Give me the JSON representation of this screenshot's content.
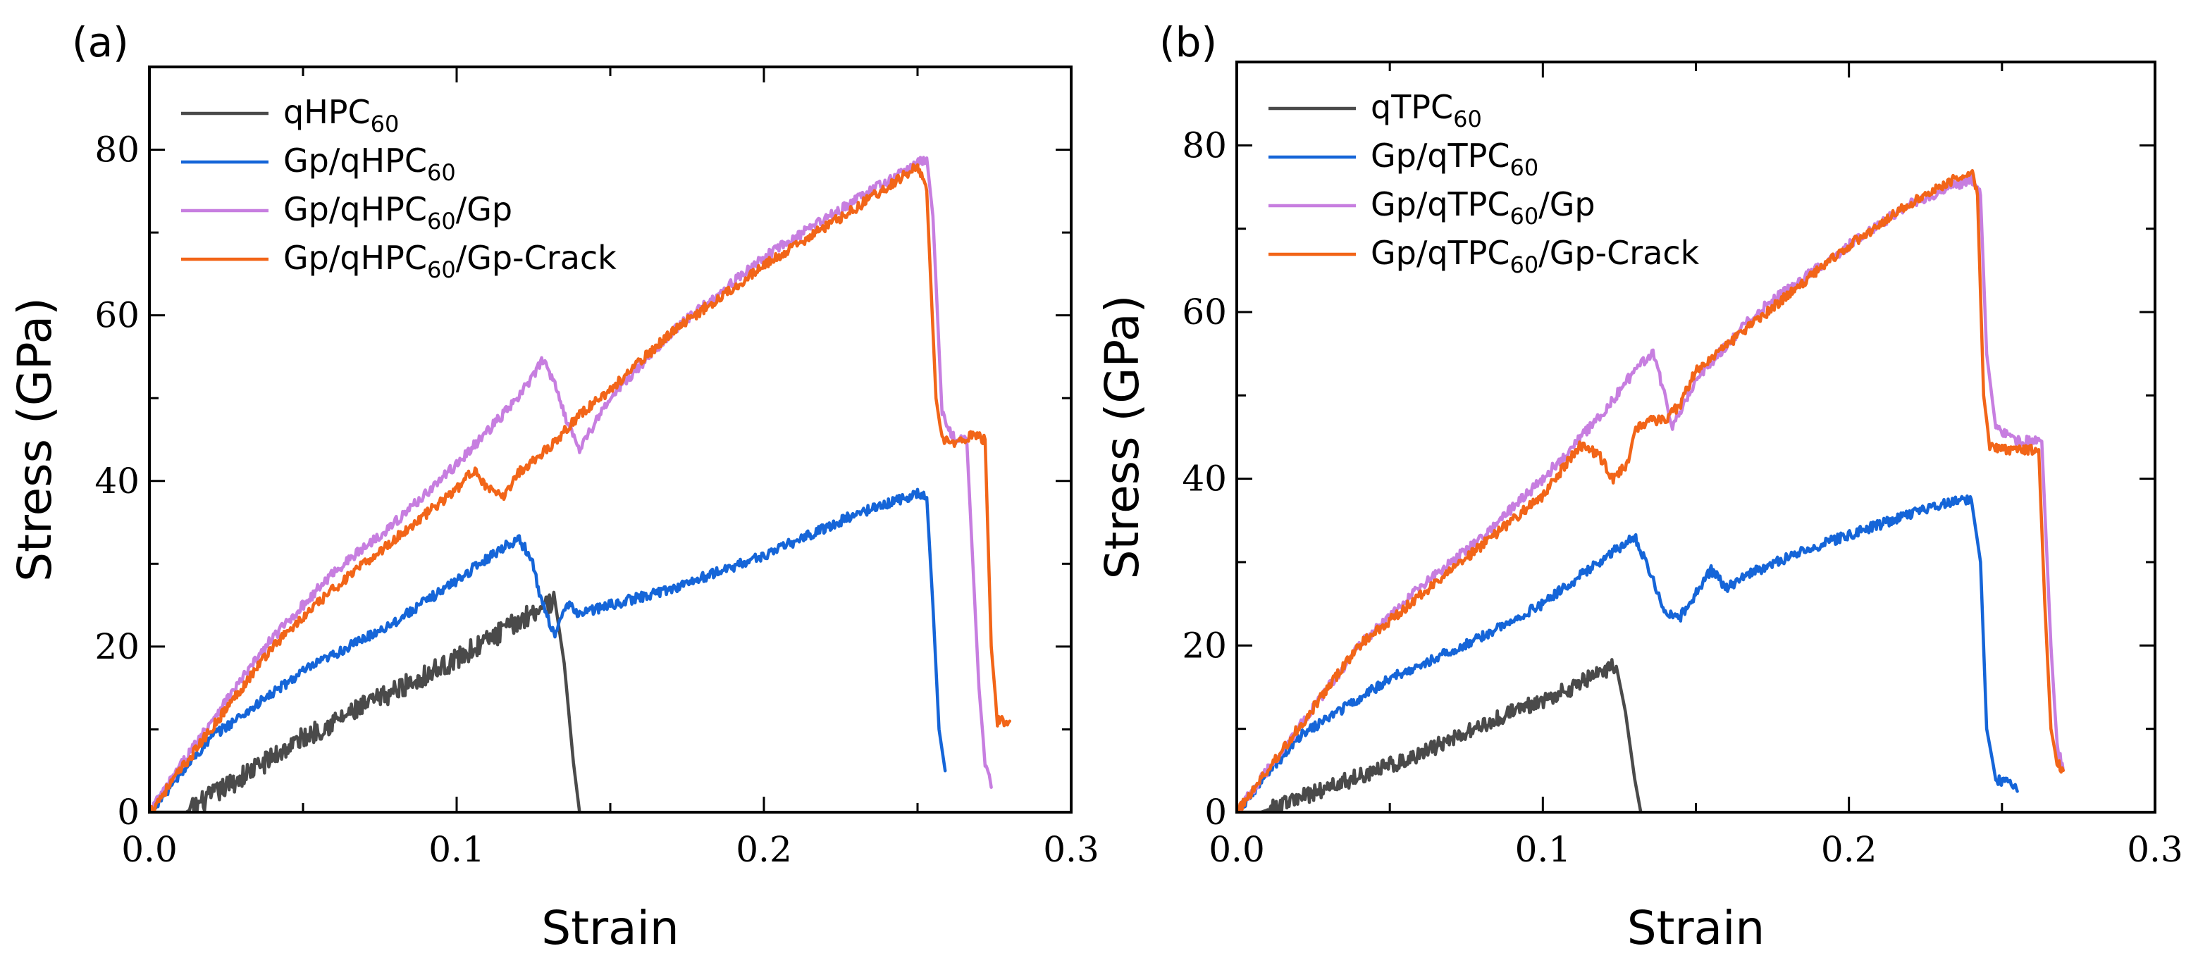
{
  "chart_data": [
    {
      "type": "line",
      "panel_label": "(a)",
      "xlabel": "Strain",
      "ylabel": "Stress (GPa)",
      "xlim": [
        0,
        0.3
      ],
      "ylim": [
        0,
        90
      ],
      "xticks": [
        0.0,
        0.1,
        0.2,
        0.3
      ],
      "xtick_labels": [
        "0.0",
        "0.1",
        "0.2",
        "0.3"
      ],
      "yticks": [
        0,
        20,
        40,
        60,
        80
      ],
      "ytick_labels": [
        "0",
        "20",
        "40",
        "60",
        "80"
      ],
      "legend_position": "top-left",
      "series": [
        {
          "name": "qHPC60",
          "legend": {
            "pre": "qHPC",
            "sub": "60",
            "post": ""
          },
          "color": "#4a4a4a",
          "noise": 1.3,
          "x": [
            0,
            0.012,
            0.05,
            0.1,
            0.12,
            0.128,
            0.132,
            0.135,
            0.138,
            0.14
          ],
          "y": [
            0,
            0,
            9,
            18.5,
            23,
            25,
            25.5,
            18,
            6,
            0
          ]
        },
        {
          "name": "Gp/qHPC60",
          "legend": {
            "pre": "Gp/qHPC",
            "sub": "60",
            "post": ""
          },
          "color": "#1565d8",
          "noise": 0.6,
          "x": [
            0,
            0.02,
            0.05,
            0.08,
            0.1,
            0.115,
            0.12,
            0.124,
            0.128,
            0.132,
            0.136,
            0.14,
            0.15,
            0.17,
            0.2,
            0.23,
            0.25,
            0.253,
            0.255,
            0.257,
            0.259
          ],
          "y": [
            0,
            9,
            17,
            23,
            28,
            32,
            33,
            31,
            25,
            21.5,
            25,
            24,
            25,
            27,
            31,
            36,
            38.5,
            38,
            25,
            10,
            5
          ]
        },
        {
          "name": "Gp/qHPC60/Gp",
          "legend": {
            "pre": "Gp/qHPC",
            "sub": "60",
            "post": "/Gp"
          },
          "color": "#c77ee0",
          "noise": 0.6,
          "x": [
            0,
            0.02,
            0.04,
            0.06,
            0.08,
            0.1,
            0.12,
            0.128,
            0.132,
            0.136,
            0.14,
            0.15,
            0.17,
            0.2,
            0.23,
            0.253,
            0.255,
            0.258,
            0.262,
            0.266,
            0.268,
            0.27,
            0.272,
            0.274
          ],
          "y": [
            0,
            11,
            21,
            29,
            35,
            42,
            50,
            54.5,
            52,
            47,
            44,
            50,
            58,
            67,
            74,
            79,
            72,
            48,
            45,
            45,
            30,
            15,
            6,
            3
          ]
        },
        {
          "name": "Gp/qHPC60/Gp-Crack",
          "legend": {
            "pre": "Gp/qHPC",
            "sub": "60",
            "post": "/Gp-Crack"
          },
          "color": "#f26518",
          "noise": 0.6,
          "x": [
            0,
            0.02,
            0.04,
            0.06,
            0.08,
            0.1,
            0.106,
            0.11,
            0.115,
            0.12,
            0.13,
            0.14,
            0.15,
            0.17,
            0.2,
            0.23,
            0.25,
            0.253,
            0.256,
            0.258,
            0.262,
            0.268,
            0.272,
            0.274,
            0.276,
            0.28
          ],
          "y": [
            0,
            10,
            20,
            27,
            33,
            39,
            41.5,
            39,
            38,
            41,
            44,
            48,
            51,
            58,
            66,
            73,
            78,
            75,
            50,
            45,
            44.5,
            45.5,
            45,
            20,
            11,
            11
          ]
        }
      ]
    },
    {
      "type": "line",
      "panel_label": "(b)",
      "xlabel": "Strain",
      "ylabel": "Stress (GPa)",
      "xlim": [
        0,
        0.3
      ],
      "ylim": [
        0,
        90
      ],
      "xticks": [
        0.0,
        0.1,
        0.2,
        0.3
      ],
      "xtick_labels": [
        "0.0",
        "0.1",
        "0.2",
        "0.3"
      ],
      "yticks": [
        0,
        20,
        40,
        60,
        80
      ],
      "ytick_labels": [
        "0",
        "20",
        "40",
        "60",
        "80"
      ],
      "legend_position": "top-left",
      "series": [
        {
          "name": "qTPC60",
          "legend": {
            "pre": "qTPC",
            "sub": "60",
            "post": ""
          },
          "color": "#4a4a4a",
          "noise": 1.0,
          "x": [
            0,
            0.008,
            0.03,
            0.06,
            0.09,
            0.11,
            0.12,
            0.124,
            0.127,
            0.13,
            0.132
          ],
          "y": [
            0,
            0,
            3,
            7,
            12,
            15,
            17,
            17.5,
            12,
            4,
            0
          ]
        },
        {
          "name": "Gp/qTPC60",
          "legend": {
            "pre": "Gp/qTPC",
            "sub": "60",
            "post": ""
          },
          "color": "#1565d8",
          "noise": 0.6,
          "x": [
            0,
            0.02,
            0.05,
            0.08,
            0.1,
            0.12,
            0.13,
            0.135,
            0.14,
            0.145,
            0.155,
            0.16,
            0.17,
            0.19,
            0.21,
            0.23,
            0.24,
            0.243,
            0.245,
            0.248,
            0.252,
            0.255
          ],
          "y": [
            0,
            9,
            16,
            21,
            25,
            30.5,
            33,
            29,
            24,
            23.5,
            29,
            27,
            29,
            32,
            34.5,
            37,
            37.5,
            30,
            10,
            4,
            3.5,
            2.5
          ]
        },
        {
          "name": "Gp/qTPC60/Gp",
          "legend": {
            "pre": "Gp/qTPC",
            "sub": "60",
            "post": "/Gp"
          },
          "color": "#c77ee0",
          "noise": 0.6,
          "x": [
            0,
            0.02,
            0.04,
            0.06,
            0.08,
            0.1,
            0.12,
            0.13,
            0.136,
            0.14,
            0.142,
            0.15,
            0.17,
            0.2,
            0.22,
            0.24,
            0.243,
            0.245,
            0.248,
            0.255,
            0.263,
            0.266,
            0.268,
            0.27
          ],
          "y": [
            0,
            10,
            20,
            27,
            33,
            40,
            48,
            53,
            55,
            50,
            46,
            52,
            60,
            68,
            73,
            76,
            74,
            55,
            46,
            44.5,
            44.5,
            20,
            8,
            5
          ]
        },
        {
          "name": "Gp/qTPC60/Gp-Crack",
          "legend": {
            "pre": "Gp/qTPC",
            "sub": "60",
            "post": "/Gp-Crack"
          },
          "color": "#f26518",
          "noise": 0.6,
          "x": [
            0,
            0.02,
            0.04,
            0.06,
            0.08,
            0.1,
            0.112,
            0.118,
            0.123,
            0.128,
            0.13,
            0.135,
            0.14,
            0.145,
            0.15,
            0.17,
            0.2,
            0.22,
            0.24,
            0.242,
            0.244,
            0.246,
            0.25,
            0.255,
            0.262,
            0.264,
            0.266,
            0.268,
            0.27
          ],
          "y": [
            0,
            10,
            20,
            26,
            32,
            38,
            44,
            43,
            40,
            42,
            46,
            47,
            47,
            49,
            53,
            59,
            68,
            73,
            77,
            74,
            50,
            44,
            43.5,
            43.5,
            43.5,
            25,
            10,
            6,
            5
          ]
        }
      ]
    }
  ]
}
